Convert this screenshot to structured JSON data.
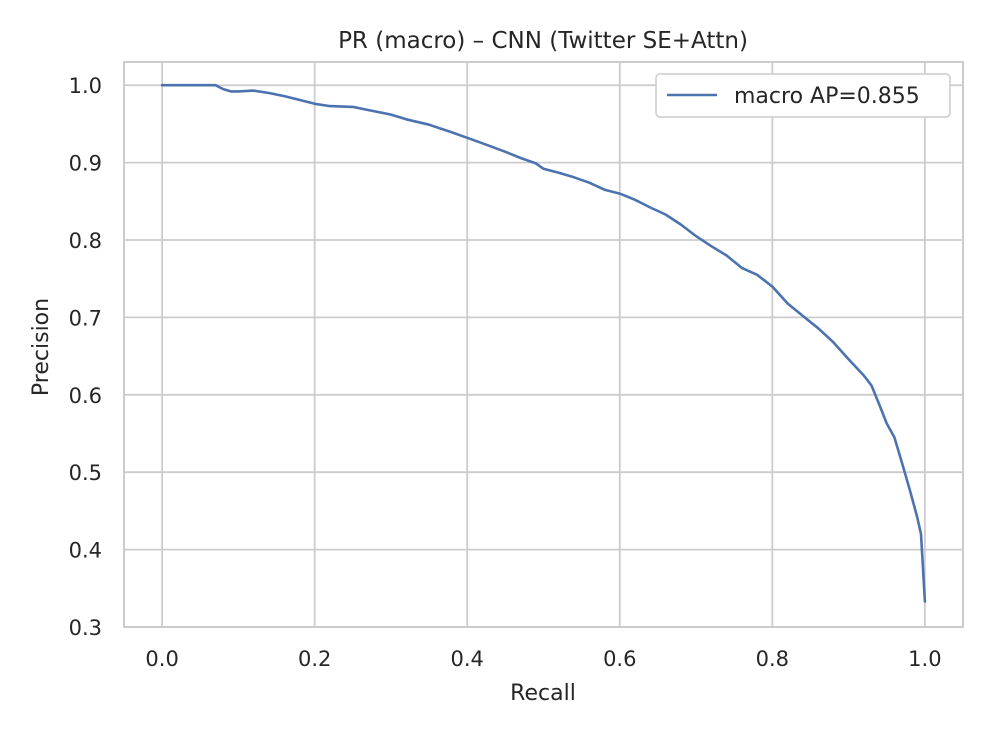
{
  "chart_data": {
    "type": "line",
    "title": "PR (macro) – CNN (Twitter SE+Attn)",
    "xlabel": "Recall",
    "ylabel": "Precision",
    "xlim": [
      -0.05,
      1.05
    ],
    "ylim": [
      0.3,
      1.03
    ],
    "xticks": [
      0.0,
      0.2,
      0.4,
      0.6,
      0.8,
      1.0
    ],
    "xtick_labels": [
      "0.0",
      "0.2",
      "0.4",
      "0.6",
      "0.8",
      "1.0"
    ],
    "yticks": [
      0.3,
      0.4,
      0.5,
      0.6,
      0.7,
      0.8,
      0.9,
      1.0
    ],
    "ytick_labels": [
      "0.3",
      "0.4",
      "0.5",
      "0.6",
      "0.7",
      "0.8",
      "0.9",
      "1.0"
    ],
    "grid": true,
    "legend_position": "top-right",
    "series": [
      {
        "name": "macro AP=0.855",
        "color": "#4c72b0",
        "x": [
          0.0,
          0.02,
          0.05,
          0.07,
          0.08,
          0.09,
          0.1,
          0.12,
          0.14,
          0.16,
          0.18,
          0.2,
          0.22,
          0.25,
          0.27,
          0.3,
          0.32,
          0.35,
          0.38,
          0.4,
          0.42,
          0.45,
          0.47,
          0.49,
          0.5,
          0.52,
          0.54,
          0.56,
          0.58,
          0.6,
          0.62,
          0.64,
          0.66,
          0.68,
          0.7,
          0.72,
          0.74,
          0.76,
          0.78,
          0.8,
          0.82,
          0.84,
          0.86,
          0.88,
          0.9,
          0.92,
          0.93,
          0.94,
          0.95,
          0.96,
          0.97,
          0.98,
          0.99,
          0.995,
          1.0
        ],
        "y": [
          1.0,
          1.0,
          1.0,
          1.0,
          0.995,
          0.992,
          0.992,
          0.993,
          0.99,
          0.986,
          0.981,
          0.976,
          0.973,
          0.972,
          0.968,
          0.962,
          0.956,
          0.949,
          0.939,
          0.932,
          0.925,
          0.914,
          0.906,
          0.899,
          0.892,
          0.887,
          0.881,
          0.874,
          0.865,
          0.86,
          0.852,
          0.842,
          0.833,
          0.82,
          0.805,
          0.792,
          0.78,
          0.764,
          0.755,
          0.74,
          0.718,
          0.702,
          0.686,
          0.668,
          0.646,
          0.625,
          0.612,
          0.588,
          0.563,
          0.545,
          0.512,
          0.478,
          0.442,
          0.42,
          0.333
        ]
      }
    ]
  }
}
